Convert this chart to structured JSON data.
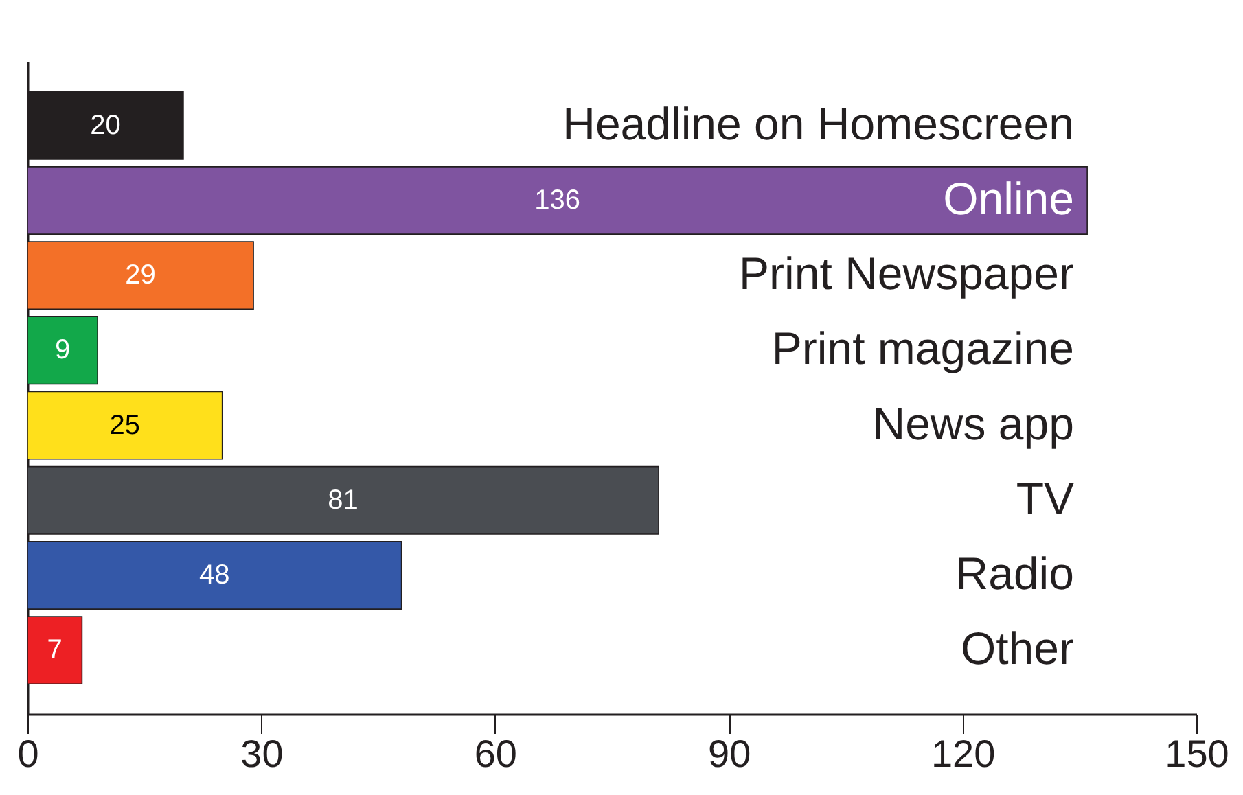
{
  "chart_data": {
    "type": "bar",
    "orientation": "horizontal",
    "categories": [
      "Headline on Homescreen",
      "Online",
      "Print Newspaper",
      "Print magazine",
      "News app",
      "TV",
      "Radio",
      "Other"
    ],
    "values": [
      20,
      136,
      29,
      9,
      25,
      81,
      48,
      7
    ],
    "colors": [
      "#231f20",
      "#7f54a0",
      "#f37028",
      "#12a84a",
      "#ffe01b",
      "#4a4d52",
      "#3458a8",
      "#ed2024"
    ],
    "xlim": [
      0,
      150
    ],
    "xticks": [
      0,
      30,
      60,
      90,
      120,
      150
    ],
    "data_labels": true,
    "grid": false
  }
}
